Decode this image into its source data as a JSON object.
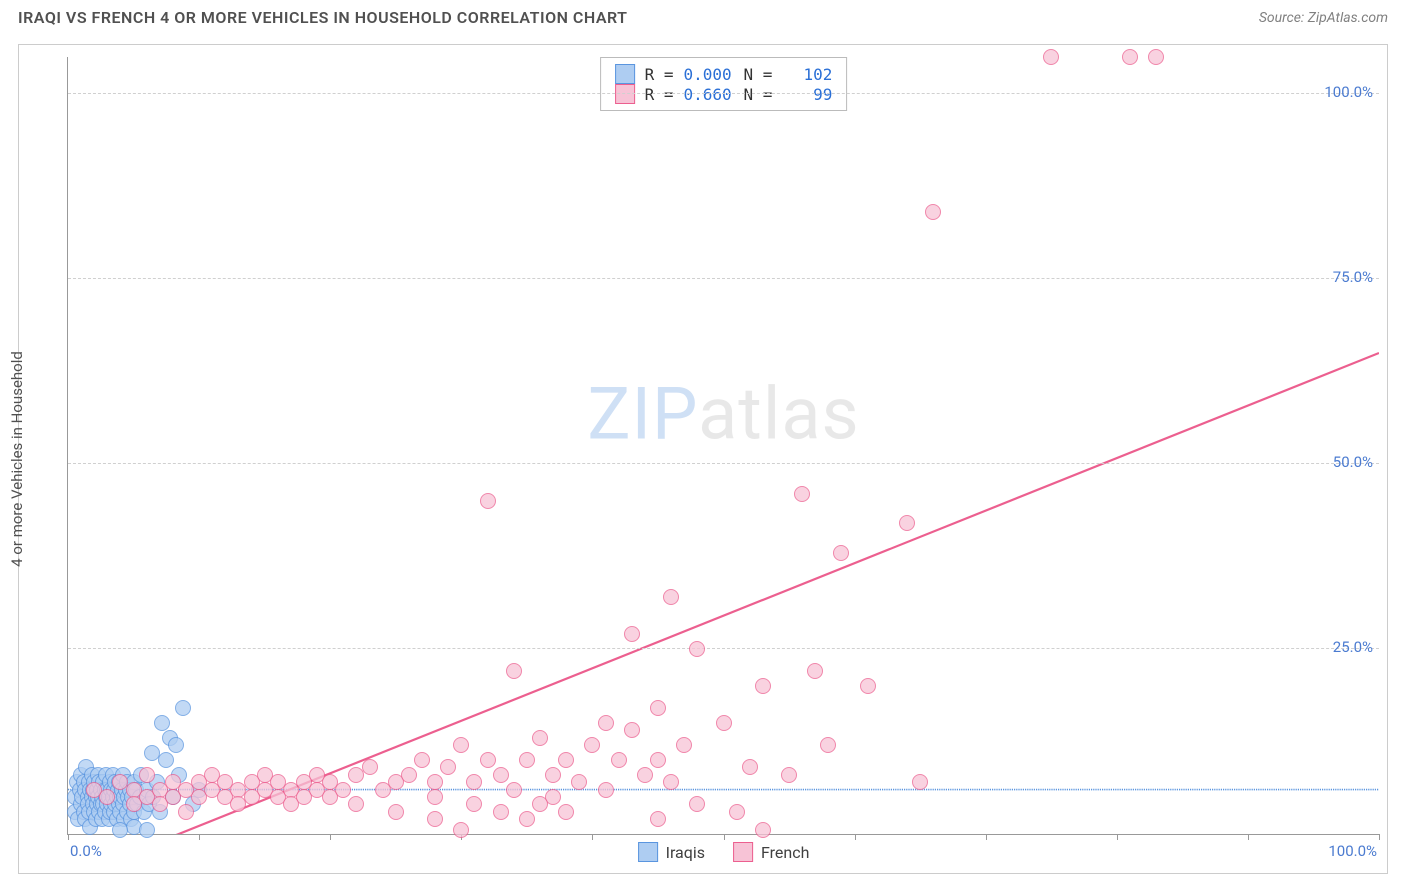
{
  "title": "IRAQI VS FRENCH 4 OR MORE VEHICLES IN HOUSEHOLD CORRELATION CHART",
  "source": "Source: ZipAtlas.com",
  "ylabel": "4 or more Vehicles in Household",
  "watermark_a": "ZIP",
  "watermark_b": "atlas",
  "chart": {
    "type": "scatter",
    "xlim": [
      0,
      100
    ],
    "ylim": [
      0,
      105
    ],
    "x_ticks": [
      0,
      10,
      20,
      30,
      40,
      50,
      60,
      70,
      80,
      90,
      100
    ],
    "y_gridlines": [
      25,
      50,
      75,
      100
    ],
    "y_ticklabels": [
      "25.0%",
      "50.0%",
      "75.0%",
      "100.0%"
    ],
    "x_ticklabel_left": "0.0%",
    "x_ticklabel_right": "100.0%",
    "background_color": "#ffffff",
    "grid_color": "#d0d0d0",
    "axis_color": "#999999",
    "ticklabel_color": "#4b7bd0",
    "marker_radius": 8,
    "marker_border_width": 1.2,
    "marker_fill_opacity": 0.3,
    "series": [
      {
        "name": "Iraqis",
        "color_border": "#5a95df",
        "color_fill": "#aecdf2",
        "R": "0.000",
        "N": "102",
        "regression": {
          "y0": 6.0,
          "y100": 6.0,
          "dash": "7,6",
          "width": 1.6
        },
        "points": [
          [
            0.5,
            3
          ],
          [
            0.5,
            5
          ],
          [
            0.7,
            7
          ],
          [
            0.8,
            2
          ],
          [
            0.9,
            6
          ],
          [
            1.0,
            4
          ],
          [
            1.0,
            8
          ],
          [
            1.1,
            5
          ],
          [
            1.2,
            3
          ],
          [
            1.2,
            7
          ],
          [
            1.3,
            6
          ],
          [
            1.3,
            2
          ],
          [
            1.4,
            9
          ],
          [
            1.5,
            5
          ],
          [
            1.5,
            4
          ],
          [
            1.6,
            7
          ],
          [
            1.6,
            3
          ],
          [
            1.7,
            6
          ],
          [
            1.7,
            1
          ],
          [
            1.8,
            5
          ],
          [
            1.8,
            8
          ],
          [
            1.9,
            4
          ],
          [
            1.9,
            6
          ],
          [
            2.0,
            3
          ],
          [
            2.0,
            7
          ],
          [
            2.1,
            5
          ],
          [
            2.1,
            2
          ],
          [
            2.2,
            6
          ],
          [
            2.2,
            4
          ],
          [
            2.3,
            8
          ],
          [
            2.3,
            5
          ],
          [
            2.4,
            3
          ],
          [
            2.4,
            7
          ],
          [
            2.5,
            6
          ],
          [
            2.5,
            4
          ],
          [
            2.6,
            5
          ],
          [
            2.6,
            2
          ],
          [
            2.7,
            7
          ],
          [
            2.7,
            4
          ],
          [
            2.8,
            6
          ],
          [
            2.8,
            3
          ],
          [
            2.9,
            5
          ],
          [
            2.9,
            8
          ],
          [
            3.0,
            4
          ],
          [
            3.0,
            6
          ],
          [
            3.1,
            2
          ],
          [
            3.1,
            5
          ],
          [
            3.2,
            7
          ],
          [
            3.2,
            3
          ],
          [
            3.3,
            6
          ],
          [
            3.3,
            4
          ],
          [
            3.4,
            5
          ],
          [
            3.4,
            8
          ],
          [
            3.5,
            3
          ],
          [
            3.5,
            6
          ],
          [
            3.6,
            4
          ],
          [
            3.6,
            7
          ],
          [
            3.7,
            5
          ],
          [
            3.7,
            2
          ],
          [
            3.8,
            6
          ],
          [
            3.9,
            4
          ],
          [
            3.9,
            7
          ],
          [
            4.0,
            5
          ],
          [
            4.0,
            3
          ],
          [
            4.1,
            6
          ],
          [
            4.2,
            4
          ],
          [
            4.2,
            8
          ],
          [
            4.3,
            5
          ],
          [
            4.3,
            2
          ],
          [
            4.4,
            6
          ],
          [
            4.5,
            3
          ],
          [
            4.5,
            7
          ],
          [
            4.6,
            5
          ],
          [
            4.7,
            4
          ],
          [
            4.7,
            6
          ],
          [
            4.8,
            2
          ],
          [
            4.9,
            5
          ],
          [
            5.0,
            7
          ],
          [
            5.0,
            3
          ],
          [
            5.2,
            6
          ],
          [
            5.3,
            4
          ],
          [
            5.5,
            5
          ],
          [
            5.6,
            8
          ],
          [
            5.8,
            3
          ],
          [
            6.0,
            6
          ],
          [
            6.2,
            4
          ],
          [
            6.4,
            11
          ],
          [
            6.5,
            5
          ],
          [
            6.8,
            7
          ],
          [
            7.0,
            3
          ],
          [
            7.2,
            15
          ],
          [
            7.5,
            10
          ],
          [
            7.8,
            13
          ],
          [
            8.0,
            5
          ],
          [
            8.2,
            12
          ],
          [
            8.5,
            8
          ],
          [
            8.8,
            17
          ],
          [
            9.5,
            4
          ],
          [
            10.0,
            6
          ],
          [
            5.0,
            1
          ],
          [
            6.0,
            0.5
          ],
          [
            4.0,
            0.5
          ]
        ]
      },
      {
        "name": "French",
        "color_border": "#ec5f8f",
        "color_fill": "#f7c3d6",
        "R": "0.660",
        "N": "99",
        "regression": {
          "y0": -6.0,
          "y100": 65.0,
          "dash": "none",
          "width": 2.2
        },
        "points": [
          [
            2,
            6
          ],
          [
            3,
            5
          ],
          [
            4,
            7
          ],
          [
            5,
            6
          ],
          [
            5,
            4
          ],
          [
            6,
            5
          ],
          [
            6,
            8
          ],
          [
            7,
            6
          ],
          [
            7,
            4
          ],
          [
            8,
            7
          ],
          [
            8,
            5
          ],
          [
            9,
            6
          ],
          [
            9,
            3
          ],
          [
            10,
            7
          ],
          [
            10,
            5
          ],
          [
            11,
            6
          ],
          [
            11,
            8
          ],
          [
            12,
            5
          ],
          [
            12,
            7
          ],
          [
            13,
            6
          ],
          [
            13,
            4
          ],
          [
            14,
            7
          ],
          [
            14,
            5
          ],
          [
            15,
            6
          ],
          [
            15,
            8
          ],
          [
            16,
            5
          ],
          [
            16,
            7
          ],
          [
            17,
            6
          ],
          [
            17,
            4
          ],
          [
            18,
            7
          ],
          [
            18,
            5
          ],
          [
            19,
            6
          ],
          [
            19,
            8
          ],
          [
            20,
            5
          ],
          [
            20,
            7
          ],
          [
            21,
            6
          ],
          [
            22,
            4
          ],
          [
            22,
            8
          ],
          [
            23,
            9
          ],
          [
            24,
            6
          ],
          [
            25,
            7
          ],
          [
            25,
            3
          ],
          [
            26,
            8
          ],
          [
            27,
            10
          ],
          [
            28,
            7
          ],
          [
            28,
            5
          ],
          [
            29,
            9
          ],
          [
            30,
            12
          ],
          [
            30,
            0.5
          ],
          [
            31,
            7
          ],
          [
            32,
            45
          ],
          [
            32,
            10
          ],
          [
            33,
            8
          ],
          [
            33,
            3
          ],
          [
            34,
            22
          ],
          [
            34,
            6
          ],
          [
            35,
            10
          ],
          [
            36,
            13
          ],
          [
            37,
            8
          ],
          [
            37,
            5
          ],
          [
            38,
            10
          ],
          [
            39,
            7
          ],
          [
            40,
            12
          ],
          [
            41,
            15
          ],
          [
            42,
            10
          ],
          [
            43,
            27
          ],
          [
            43,
            14
          ],
          [
            44,
            8
          ],
          [
            45,
            17
          ],
          [
            45,
            10
          ],
          [
            46,
            7
          ],
          [
            46,
            32
          ],
          [
            47,
            12
          ],
          [
            48,
            25
          ],
          [
            50,
            15
          ],
          [
            51,
            3
          ],
          [
            52,
            9
          ],
          [
            53,
            20
          ],
          [
            53,
            0.5
          ],
          [
            56,
            46
          ],
          [
            57,
            22
          ],
          [
            59,
            38
          ],
          [
            61,
            20
          ],
          [
            64,
            42
          ],
          [
            65,
            7
          ],
          [
            66,
            84
          ],
          [
            75,
            105
          ],
          [
            81,
            105
          ],
          [
            83,
            105
          ],
          [
            45,
            2
          ],
          [
            38,
            3
          ],
          [
            28,
            2
          ],
          [
            31,
            4
          ],
          [
            35,
            2
          ],
          [
            48,
            4
          ],
          [
            55,
            8
          ],
          [
            58,
            12
          ],
          [
            36,
            4
          ],
          [
            41,
            6
          ]
        ]
      }
    ]
  },
  "legend_bottom": [
    {
      "label": "Iraqis",
      "fill": "#aecdf2",
      "border": "#5a95df"
    },
    {
      "label": "French",
      "fill": "#f7c3d6",
      "border": "#ec5f8f"
    }
  ]
}
